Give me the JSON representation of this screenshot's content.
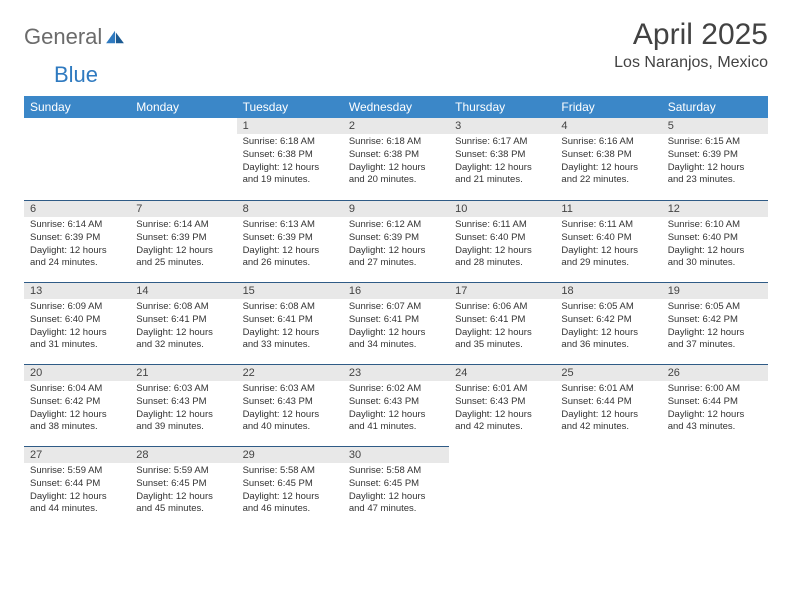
{
  "brand": {
    "word1": "General",
    "word2": "Blue"
  },
  "header": {
    "title": "April 2025",
    "location": "Los Naranjos, Mexico"
  },
  "colors": {
    "header_bg": "#3b87c8",
    "header_text": "#ffffff",
    "daynum_bg": "#e8e8e8",
    "daynum_border_top": "#2f5b86",
    "body_bg": "#ffffff",
    "logo_gray": "#6b6b6b",
    "logo_blue": "#2f7ac0"
  },
  "weekdays": [
    "Sunday",
    "Monday",
    "Tuesday",
    "Wednesday",
    "Thursday",
    "Friday",
    "Saturday"
  ],
  "weeks": [
    [
      null,
      null,
      {
        "n": "1",
        "sr": "Sunrise: 6:18 AM",
        "ss": "Sunset: 6:38 PM",
        "dl": "Daylight: 12 hours and 19 minutes."
      },
      {
        "n": "2",
        "sr": "Sunrise: 6:18 AM",
        "ss": "Sunset: 6:38 PM",
        "dl": "Daylight: 12 hours and 20 minutes."
      },
      {
        "n": "3",
        "sr": "Sunrise: 6:17 AM",
        "ss": "Sunset: 6:38 PM",
        "dl": "Daylight: 12 hours and 21 minutes."
      },
      {
        "n": "4",
        "sr": "Sunrise: 6:16 AM",
        "ss": "Sunset: 6:38 PM",
        "dl": "Daylight: 12 hours and 22 minutes."
      },
      {
        "n": "5",
        "sr": "Sunrise: 6:15 AM",
        "ss": "Sunset: 6:39 PM",
        "dl": "Daylight: 12 hours and 23 minutes."
      }
    ],
    [
      {
        "n": "6",
        "sr": "Sunrise: 6:14 AM",
        "ss": "Sunset: 6:39 PM",
        "dl": "Daylight: 12 hours and 24 minutes."
      },
      {
        "n": "7",
        "sr": "Sunrise: 6:14 AM",
        "ss": "Sunset: 6:39 PM",
        "dl": "Daylight: 12 hours and 25 minutes."
      },
      {
        "n": "8",
        "sr": "Sunrise: 6:13 AM",
        "ss": "Sunset: 6:39 PM",
        "dl": "Daylight: 12 hours and 26 minutes."
      },
      {
        "n": "9",
        "sr": "Sunrise: 6:12 AM",
        "ss": "Sunset: 6:39 PM",
        "dl": "Daylight: 12 hours and 27 minutes."
      },
      {
        "n": "10",
        "sr": "Sunrise: 6:11 AM",
        "ss": "Sunset: 6:40 PM",
        "dl": "Daylight: 12 hours and 28 minutes."
      },
      {
        "n": "11",
        "sr": "Sunrise: 6:11 AM",
        "ss": "Sunset: 6:40 PM",
        "dl": "Daylight: 12 hours and 29 minutes."
      },
      {
        "n": "12",
        "sr": "Sunrise: 6:10 AM",
        "ss": "Sunset: 6:40 PM",
        "dl": "Daylight: 12 hours and 30 minutes."
      }
    ],
    [
      {
        "n": "13",
        "sr": "Sunrise: 6:09 AM",
        "ss": "Sunset: 6:40 PM",
        "dl": "Daylight: 12 hours and 31 minutes."
      },
      {
        "n": "14",
        "sr": "Sunrise: 6:08 AM",
        "ss": "Sunset: 6:41 PM",
        "dl": "Daylight: 12 hours and 32 minutes."
      },
      {
        "n": "15",
        "sr": "Sunrise: 6:08 AM",
        "ss": "Sunset: 6:41 PM",
        "dl": "Daylight: 12 hours and 33 minutes."
      },
      {
        "n": "16",
        "sr": "Sunrise: 6:07 AM",
        "ss": "Sunset: 6:41 PM",
        "dl": "Daylight: 12 hours and 34 minutes."
      },
      {
        "n": "17",
        "sr": "Sunrise: 6:06 AM",
        "ss": "Sunset: 6:41 PM",
        "dl": "Daylight: 12 hours and 35 minutes."
      },
      {
        "n": "18",
        "sr": "Sunrise: 6:05 AM",
        "ss": "Sunset: 6:42 PM",
        "dl": "Daylight: 12 hours and 36 minutes."
      },
      {
        "n": "19",
        "sr": "Sunrise: 6:05 AM",
        "ss": "Sunset: 6:42 PM",
        "dl": "Daylight: 12 hours and 37 minutes."
      }
    ],
    [
      {
        "n": "20",
        "sr": "Sunrise: 6:04 AM",
        "ss": "Sunset: 6:42 PM",
        "dl": "Daylight: 12 hours and 38 minutes."
      },
      {
        "n": "21",
        "sr": "Sunrise: 6:03 AM",
        "ss": "Sunset: 6:43 PM",
        "dl": "Daylight: 12 hours and 39 minutes."
      },
      {
        "n": "22",
        "sr": "Sunrise: 6:03 AM",
        "ss": "Sunset: 6:43 PM",
        "dl": "Daylight: 12 hours and 40 minutes."
      },
      {
        "n": "23",
        "sr": "Sunrise: 6:02 AM",
        "ss": "Sunset: 6:43 PM",
        "dl": "Daylight: 12 hours and 41 minutes."
      },
      {
        "n": "24",
        "sr": "Sunrise: 6:01 AM",
        "ss": "Sunset: 6:43 PM",
        "dl": "Daylight: 12 hours and 42 minutes."
      },
      {
        "n": "25",
        "sr": "Sunrise: 6:01 AM",
        "ss": "Sunset: 6:44 PM",
        "dl": "Daylight: 12 hours and 42 minutes."
      },
      {
        "n": "26",
        "sr": "Sunrise: 6:00 AM",
        "ss": "Sunset: 6:44 PM",
        "dl": "Daylight: 12 hours and 43 minutes."
      }
    ],
    [
      {
        "n": "27",
        "sr": "Sunrise: 5:59 AM",
        "ss": "Sunset: 6:44 PM",
        "dl": "Daylight: 12 hours and 44 minutes."
      },
      {
        "n": "28",
        "sr": "Sunrise: 5:59 AM",
        "ss": "Sunset: 6:45 PM",
        "dl": "Daylight: 12 hours and 45 minutes."
      },
      {
        "n": "29",
        "sr": "Sunrise: 5:58 AM",
        "ss": "Sunset: 6:45 PM",
        "dl": "Daylight: 12 hours and 46 minutes."
      },
      {
        "n": "30",
        "sr": "Sunrise: 5:58 AM",
        "ss": "Sunset: 6:45 PM",
        "dl": "Daylight: 12 hours and 47 minutes."
      },
      null,
      null,
      null
    ]
  ]
}
